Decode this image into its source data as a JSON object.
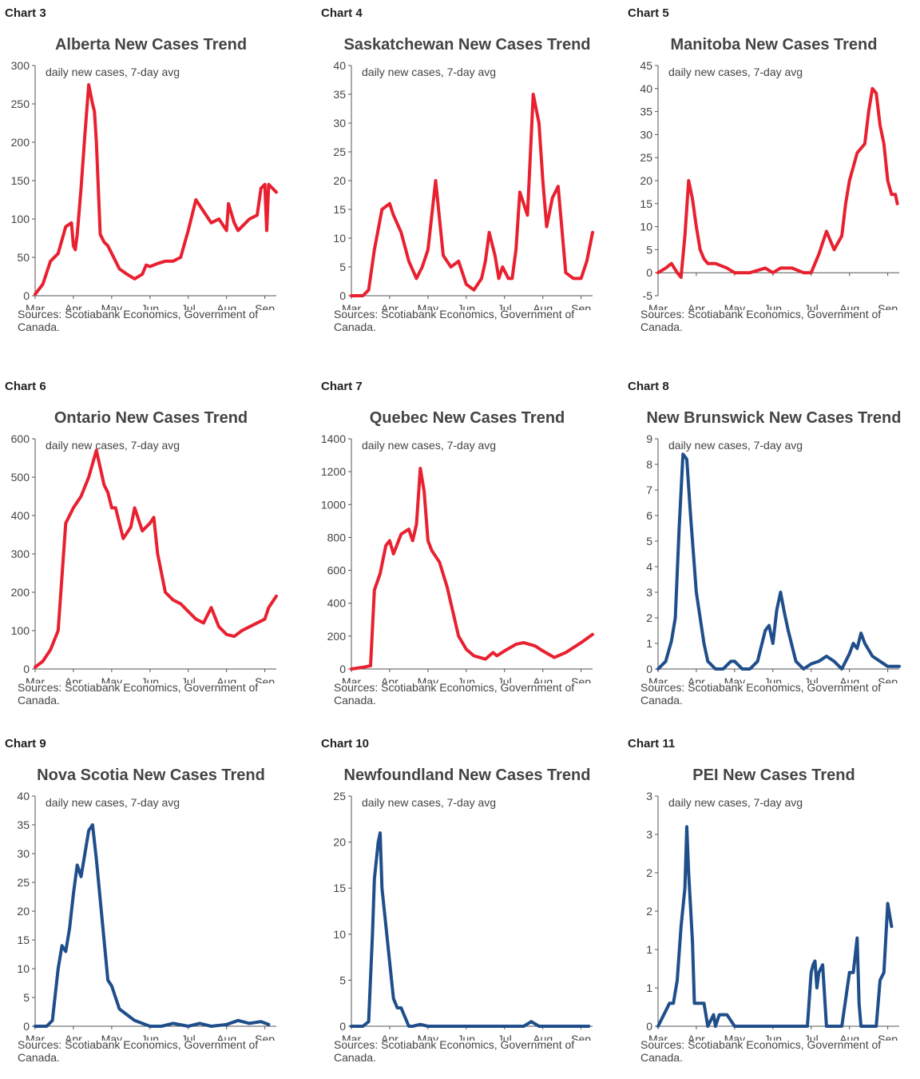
{
  "colors": {
    "red": "#e8202f",
    "navy": "#1f4e8a",
    "axis": "#555555"
  },
  "source_text": "Sources: Scotiabank Economics, Government of Canada.",
  "months": [
    "Mar",
    "Apr",
    "May",
    "Jun",
    "Jul",
    "Aug",
    "Sep"
  ],
  "chart_data": [
    {
      "label": "Chart 3",
      "type": "line",
      "title": "Alberta New Cases Trend",
      "ylabel": "daily new cases, 7-day avg",
      "ylim": [
        0,
        300
      ],
      "yticks": [
        0,
        50,
        100,
        150,
        200,
        250,
        300
      ],
      "color": "red",
      "xlim": [
        0,
        6.3
      ],
      "x": [
        0,
        0.2,
        0.4,
        0.6,
        0.8,
        0.95,
        1.0,
        1.05,
        1.1,
        1.15,
        1.2,
        1.3,
        1.4,
        1.5,
        1.55,
        1.6,
        1.65,
        1.7,
        1.8,
        1.9,
        2.0,
        2.2,
        2.4,
        2.6,
        2.8,
        2.9,
        3.0,
        3.2,
        3.4,
        3.6,
        3.8,
        4.0,
        4.2,
        4.4,
        4.6,
        4.8,
        5.0,
        5.05,
        5.2,
        5.3,
        5.4,
        5.6,
        5.8,
        5.9,
        6.0,
        6.05,
        6.1,
        6.2,
        6.3
      ],
      "y": [
        2,
        15,
        45,
        55,
        90,
        95,
        65,
        60,
        80,
        110,
        140,
        210,
        275,
        250,
        240,
        200,
        140,
        80,
        70,
        65,
        55,
        35,
        28,
        22,
        28,
        40,
        38,
        42,
        45,
        45,
        50,
        85,
        125,
        110,
        95,
        100,
        85,
        120,
        95,
        85,
        90,
        100,
        105,
        140,
        145,
        85,
        145,
        140,
        135
      ]
    },
    {
      "label": "Chart 4",
      "type": "line",
      "title": "Saskatchewan New Cases Trend",
      "ylabel": "daily new cases, 7-day avg",
      "ylim": [
        0,
        40
      ],
      "yticks": [
        0,
        5,
        10,
        15,
        20,
        25,
        30,
        35,
        40
      ],
      "color": "red",
      "xlim": [
        0,
        6.3
      ],
      "x": [
        0,
        0.3,
        0.45,
        0.6,
        0.8,
        1.0,
        1.1,
        1.3,
        1.5,
        1.7,
        1.85,
        2.0,
        2.2,
        2.4,
        2.6,
        2.8,
        3.0,
        3.2,
        3.4,
        3.5,
        3.6,
        3.75,
        3.85,
        3.95,
        4.1,
        4.2,
        4.3,
        4.4,
        4.6,
        4.75,
        4.9,
        5.0,
        5.1,
        5.25,
        5.4,
        5.6,
        5.8,
        6.0,
        6.15,
        6.3
      ],
      "y": [
        0,
        0,
        1,
        8,
        15,
        16,
        14,
        11,
        6,
        3,
        5,
        8,
        20,
        7,
        5,
        6,
        2,
        1,
        3,
        6,
        11,
        7,
        3,
        5,
        3,
        3,
        8,
        18,
        14,
        35,
        30,
        20,
        12,
        17,
        19,
        4,
        3,
        3,
        6,
        11
      ]
    },
    {
      "label": "Chart 5",
      "type": "line",
      "title": "Manitoba New Cases Trend",
      "ylabel": "daily new cases, 7-day avg",
      "ylim": [
        -5,
        45
      ],
      "yticks": [
        -5,
        0,
        5,
        10,
        15,
        20,
        25,
        30,
        35,
        40,
        45
      ],
      "color": "red",
      "xlim": [
        0,
        6.3
      ],
      "x": [
        0,
        0.2,
        0.35,
        0.5,
        0.6,
        0.7,
        0.8,
        0.9,
        1.0,
        1.1,
        1.2,
        1.3,
        1.5,
        1.8,
        2.0,
        2.4,
        2.8,
        3.0,
        3.2,
        3.5,
        3.8,
        4.0,
        4.2,
        4.4,
        4.6,
        4.8,
        4.9,
        5.0,
        5.2,
        5.4,
        5.5,
        5.6,
        5.7,
        5.8,
        5.9,
        6.0,
        6.1,
        6.2,
        6.25
      ],
      "y": [
        0,
        1,
        2,
        0,
        -1,
        8,
        20,
        16,
        10,
        5,
        3,
        2,
        2,
        1,
        0,
        0,
        1,
        0,
        1,
        1,
        0,
        0,
        4,
        9,
        5,
        8,
        15,
        20,
        26,
        28,
        35,
        40,
        39,
        32,
        28,
        20,
        17,
        17,
        15
      ]
    },
    {
      "label": "Chart 6",
      "type": "line",
      "title": "Ontario New Cases Trend",
      "ylabel": "daily new cases, 7-day avg",
      "ylim": [
        0,
        600
      ],
      "yticks": [
        0,
        100,
        200,
        300,
        400,
        500,
        600
      ],
      "color": "red",
      "xlim": [
        0,
        6.3
      ],
      "x": [
        0,
        0.2,
        0.4,
        0.6,
        0.8,
        1.0,
        1.2,
        1.4,
        1.6,
        1.8,
        1.9,
        2.0,
        2.1,
        2.3,
        2.5,
        2.6,
        2.8,
        3.0,
        3.1,
        3.2,
        3.4,
        3.6,
        3.8,
        4.0,
        4.2,
        4.4,
        4.6,
        4.8,
        5.0,
        5.2,
        5.4,
        5.6,
        5.8,
        6.0,
        6.1,
        6.2,
        6.3
      ],
      "y": [
        5,
        20,
        50,
        100,
        380,
        420,
        450,
        500,
        570,
        480,
        460,
        420,
        420,
        340,
        370,
        420,
        360,
        380,
        395,
        300,
        200,
        180,
        170,
        150,
        130,
        120,
        160,
        110,
        90,
        85,
        100,
        110,
        120,
        130,
        160,
        175,
        190
      ]
    },
    {
      "label": "Chart 7",
      "type": "line",
      "title": "Quebec New Cases Trend",
      "ylabel": "daily new cases, 7-day avg",
      "ylim": [
        0,
        1400
      ],
      "yticks": [
        0,
        200,
        400,
        600,
        800,
        1000,
        1200,
        1400
      ],
      "color": "red",
      "xlim": [
        0,
        6.3
      ],
      "x": [
        0,
        0.3,
        0.5,
        0.6,
        0.75,
        0.9,
        1.0,
        1.1,
        1.3,
        1.5,
        1.6,
        1.7,
        1.8,
        1.9,
        2.0,
        2.1,
        2.3,
        2.5,
        2.8,
        3.0,
        3.2,
        3.5,
        3.7,
        3.8,
        4.0,
        4.3,
        4.5,
        4.8,
        5.0,
        5.3,
        5.6,
        6.0,
        6.3
      ],
      "y": [
        0,
        10,
        20,
        480,
        580,
        750,
        780,
        700,
        820,
        850,
        780,
        880,
        1220,
        1080,
        780,
        720,
        650,
        500,
        200,
        120,
        80,
        60,
        100,
        80,
        110,
        150,
        160,
        140,
        110,
        70,
        100,
        160,
        210
      ]
    },
    {
      "label": "Chart 8",
      "type": "line",
      "title": "New Brunswick New Cases Trend",
      "ylabel": "daily new cases, 7-day avg",
      "ylim": [
        0,
        9
      ],
      "yticks": [
        0,
        1,
        2,
        3,
        4,
        5,
        6,
        7,
        8,
        9
      ],
      "color": "navy",
      "xlim": [
        0,
        6.3
      ],
      "x": [
        0,
        0.2,
        0.35,
        0.45,
        0.55,
        0.65,
        0.75,
        0.85,
        0.9,
        1.0,
        1.1,
        1.2,
        1.3,
        1.5,
        1.7,
        1.9,
        2.0,
        2.2,
        2.4,
        2.6,
        2.8,
        2.9,
        3.0,
        3.1,
        3.2,
        3.3,
        3.4,
        3.6,
        3.8,
        4.0,
        4.2,
        4.4,
        4.6,
        4.8,
        5.0,
        5.1,
        5.2,
        5.3,
        5.4,
        5.6,
        5.8,
        6.0,
        6.2,
        6.3
      ],
      "y": [
        0,
        0.3,
        1.1,
        2,
        5.5,
        8.4,
        8.2,
        6,
        5,
        3,
        2,
        1,
        0.3,
        0,
        0,
        0.3,
        0.3,
        0,
        0,
        0.3,
        1.5,
        1.7,
        1,
        2.3,
        3,
        2.2,
        1.5,
        0.3,
        0,
        0.2,
        0.3,
        0.5,
        0.3,
        0,
        0.6,
        1,
        0.8,
        1.4,
        1,
        0.5,
        0.3,
        0.1,
        0.1,
        0.1
      ]
    },
    {
      "label": "Chart 9",
      "type": "line",
      "title": "Nova Scotia New Cases Trend",
      "ylabel": "daily new cases, 7-day avg",
      "ylim": [
        0,
        40
      ],
      "yticks": [
        0,
        5,
        10,
        15,
        20,
        25,
        30,
        35,
        40
      ],
      "color": "navy",
      "xlim": [
        0,
        6.3
      ],
      "x": [
        0,
        0.3,
        0.45,
        0.6,
        0.7,
        0.8,
        0.9,
        1.0,
        1.1,
        1.2,
        1.3,
        1.4,
        1.5,
        1.55,
        1.6,
        1.7,
        1.8,
        1.9,
        2.0,
        2.1,
        2.2,
        2.4,
        2.6,
        2.8,
        3.0,
        3.3,
        3.6,
        4.0,
        4.3,
        4.6,
        5.0,
        5.3,
        5.6,
        5.9,
        6.1
      ],
      "y": [
        0,
        0,
        1,
        10,
        14,
        13,
        17,
        23,
        28,
        26,
        30,
        34,
        35,
        32,
        29,
        22,
        15,
        8,
        7,
        5,
        3,
        2,
        1,
        0.5,
        0,
        0,
        0.5,
        0,
        0.5,
        0,
        0.3,
        1,
        0.5,
        0.8,
        0.3
      ]
    },
    {
      "label": "Chart 10",
      "type": "line",
      "title": "Newfoundland New Cases Trend",
      "ylabel": "daily new cases, 7-day avg",
      "ylim": [
        0,
        25
      ],
      "yticks": [
        0,
        5,
        10,
        15,
        20,
        25
      ],
      "color": "navy",
      "xlim": [
        0,
        6.3
      ],
      "x": [
        0,
        0.3,
        0.45,
        0.55,
        0.6,
        0.7,
        0.75,
        0.8,
        0.9,
        1.0,
        1.1,
        1.2,
        1.3,
        1.4,
        1.5,
        1.6,
        1.8,
        2.0,
        2.2,
        2.5,
        3.0,
        3.5,
        4.0,
        4.5,
        4.7,
        4.9,
        5.2,
        5.5,
        6.0,
        6.2
      ],
      "y": [
        0,
        0,
        0.5,
        10,
        16,
        20,
        21,
        15,
        11,
        7,
        3,
        2,
        2,
        1,
        0,
        0,
        0.2,
        0,
        0,
        0,
        0,
        0,
        0,
        0,
        0.5,
        0,
        0,
        0,
        0,
        0
      ]
    },
    {
      "label": "Chart 11",
      "type": "line",
      "title": "PEI New Cases Trend",
      "ylabel": "daily new cases, 7-day avg",
      "ylim": [
        0,
        3
      ],
      "yticks": [
        0,
        0.5,
        1,
        1.5,
        2,
        2.5,
        3
      ],
      "ytick_labels": [
        "0",
        "1",
        "1",
        "2",
        "2",
        "3",
        "3"
      ],
      "color": "navy",
      "xlim": [
        0,
        6.3
      ],
      "x": [
        0,
        0.2,
        0.3,
        0.4,
        0.5,
        0.6,
        0.7,
        0.75,
        0.8,
        0.9,
        0.95,
        1.0,
        1.1,
        1.2,
        1.3,
        1.45,
        1.5,
        1.6,
        1.8,
        2.0,
        2.5,
        3.0,
        3.5,
        3.9,
        4.0,
        4.05,
        4.1,
        4.15,
        4.2,
        4.3,
        4.4,
        4.6,
        4.8,
        5.0,
        5.1,
        5.2,
        5.25,
        5.3,
        5.5,
        5.7,
        5.8,
        5.9,
        6.0,
        6.1
      ],
      "y": [
        0,
        0.2,
        0.3,
        0.3,
        0.6,
        1.3,
        1.8,
        2.6,
        2,
        1.1,
        0.3,
        0.3,
        0.3,
        0.3,
        0,
        0.15,
        0,
        0.15,
        0.15,
        0,
        0,
        0,
        0,
        0,
        0.7,
        0.8,
        0.85,
        0.5,
        0.7,
        0.8,
        0,
        0,
        0,
        0.7,
        0.7,
        1.15,
        0.3,
        0,
        0,
        0,
        0.6,
        0.7,
        1.6,
        1.3
      ]
    }
  ]
}
